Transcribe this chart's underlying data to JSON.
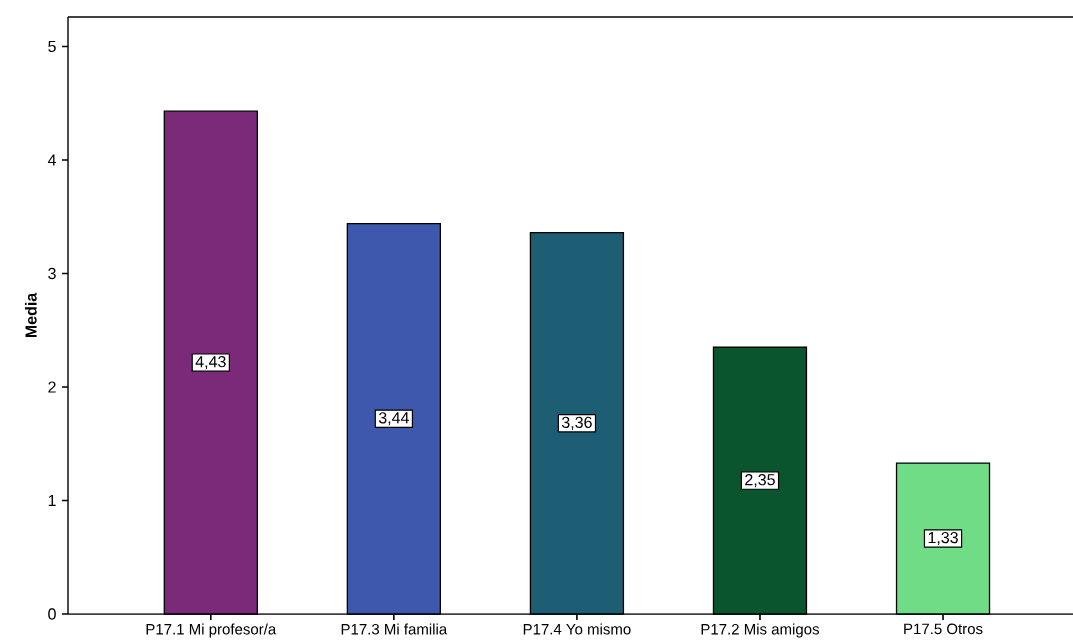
{
  "chart_data": {
    "type": "bar",
    "ylabel": "Media",
    "categories": [
      "P17.1 Mi profesor/a",
      "P17.3 Mi familia",
      "P17.4 Yo mismo",
      "P17.2 Mis amigos",
      "P17.5 Otros"
    ],
    "values": [
      4.43,
      3.44,
      3.36,
      2.35,
      1.33
    ],
    "colors": [
      "#7b2a7a",
      "#3d58ad",
      "#1d5e75",
      "#0a552d",
      "#70dc85"
    ],
    "value_labels": [
      "4,43",
      "3,44",
      "3,36",
      "2,35",
      "1,33"
    ],
    "ylim": [
      0,
      5.26
    ],
    "yticks": [
      0,
      1,
      2,
      3,
      4,
      5
    ]
  }
}
